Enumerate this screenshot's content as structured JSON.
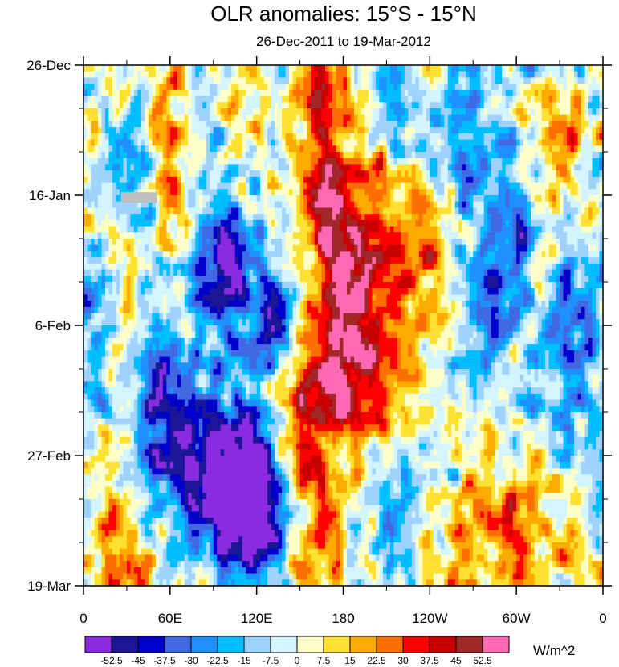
{
  "chart_data": {
    "type": "heatmap",
    "title": "OLR anomalies: 15°S - 15°N",
    "subtitle": "26-Dec-2011 to 19-Mar-2012",
    "xlabel": "",
    "ylabel": "",
    "x_range_lon_east": [
      0,
      360
    ],
    "x_ticks": [
      {
        "lon": 0,
        "label": "0"
      },
      {
        "lon": 60,
        "label": "60E"
      },
      {
        "lon": 120,
        "label": "120E"
      },
      {
        "lon": 180,
        "label": "180"
      },
      {
        "lon": 240,
        "label": "120W"
      },
      {
        "lon": 300,
        "label": "60W"
      },
      {
        "lon": 360,
        "label": "0"
      }
    ],
    "y_range_days": [
      0,
      84
    ],
    "y_ticks": [
      {
        "day": 0,
        "label": "26-Dec"
      },
      {
        "day": 21,
        "label": "16-Jan"
      },
      {
        "day": 42,
        "label": "6-Feb"
      },
      {
        "day": 63,
        "label": "27-Feb"
      },
      {
        "day": 84,
        "label": "19-Mar"
      }
    ],
    "units": "W/m^2",
    "levels": [
      "-52.5",
      "-45",
      "-37.5",
      "-30",
      "-22.5",
      "-15",
      "-7.5",
      "0",
      "7.5",
      "15",
      "22.5",
      "30",
      "37.5",
      "45",
      "52.5"
    ],
    "colors": [
      "#8a2be2",
      "#1a1696",
      "#0000cd",
      "#4169e1",
      "#1e90ff",
      "#00bfff",
      "#a0d2ff",
      "#d2f5ff",
      "#ffffc8",
      "#ffe132",
      "#ffaa00",
      "#ff6e00",
      "#ff0000",
      "#c80000",
      "#a02828",
      "#ff69b4"
    ],
    "missing_color": "#c0c0c0",
    "features": [
      {
        "lon": 95,
        "day": 33,
        "amp": -55,
        "slon": 14,
        "sday": 8
      },
      {
        "lon": 100,
        "day": 67,
        "amp": -58,
        "slon": 18,
        "sday": 9
      },
      {
        "lon": 125,
        "day": 70,
        "amp": -55,
        "slon": 18,
        "sday": 9
      },
      {
        "lon": 65,
        "day": 60,
        "amp": -45,
        "slon": 16,
        "sday": 8
      },
      {
        "lon": 130,
        "day": 40,
        "amp": -40,
        "slon": 10,
        "sday": 6
      },
      {
        "lon": 40,
        "day": 47,
        "amp": -25,
        "slon": 20,
        "sday": 10
      },
      {
        "lon": 30,
        "day": 15,
        "amp": -25,
        "slon": 15,
        "sday": 8
      },
      {
        "lon": 80,
        "day": 10,
        "amp": -25,
        "slon": 10,
        "sday": 6
      },
      {
        "lon": 165,
        "day": 18,
        "amp": 42,
        "slon": 10,
        "sday": 8
      },
      {
        "lon": 160,
        "day": 3,
        "amp": 32,
        "slon": 12,
        "sday": 5
      },
      {
        "lon": 180,
        "day": 32,
        "amp": 35,
        "slon": 14,
        "sday": 10
      },
      {
        "lon": 175,
        "day": 51,
        "amp": 45,
        "slon": 18,
        "sday": 8
      },
      {
        "lon": 145,
        "day": 64,
        "amp": 32,
        "slon": 14,
        "sday": 10
      },
      {
        "lon": 160,
        "day": 77,
        "amp": 30,
        "slon": 12,
        "sday": 8
      },
      {
        "lon": 30,
        "day": 42,
        "amp": 38,
        "slon": 8,
        "sday": 8
      },
      {
        "lon": 60,
        "day": 8,
        "amp": 28,
        "slon": 15,
        "sday": 10
      },
      {
        "lon": 20,
        "day": 78,
        "amp": 30,
        "slon": 10,
        "sday": 6
      },
      {
        "lon": 210,
        "day": 40,
        "amp": 25,
        "slon": 25,
        "sday": 15
      },
      {
        "lon": 215,
        "day": 5,
        "amp": -30,
        "slon": 12,
        "sday": 6
      },
      {
        "lon": 260,
        "day": 12,
        "amp": -22,
        "slon": 15,
        "sday": 8
      },
      {
        "lon": 290,
        "day": 25,
        "amp": -22,
        "slon": 20,
        "sday": 10
      },
      {
        "lon": 275,
        "day": 42,
        "amp": -25,
        "slon": 20,
        "sday": 8
      },
      {
        "lon": 340,
        "day": 45,
        "amp": -28,
        "slon": 15,
        "sday": 10
      },
      {
        "lon": 230,
        "day": 63,
        "amp": -15,
        "slon": 20,
        "sday": 10
      },
      {
        "lon": 210,
        "day": 75,
        "amp": -22,
        "slon": 12,
        "sday": 6
      },
      {
        "lon": 250,
        "day": 75,
        "amp": 18,
        "slon": 20,
        "sday": 8
      },
      {
        "lon": 300,
        "day": 78,
        "amp": 20,
        "slon": 25,
        "sday": 8
      },
      {
        "lon": 325,
        "day": 10,
        "amp": 18,
        "slon": 15,
        "sday": 10
      },
      {
        "lon": 240,
        "day": 30,
        "amp": 12,
        "slon": 15,
        "sday": 10
      },
      {
        "lon": 200,
        "day": 20,
        "amp": 10,
        "slon": 15,
        "sday": 10
      }
    ]
  }
}
